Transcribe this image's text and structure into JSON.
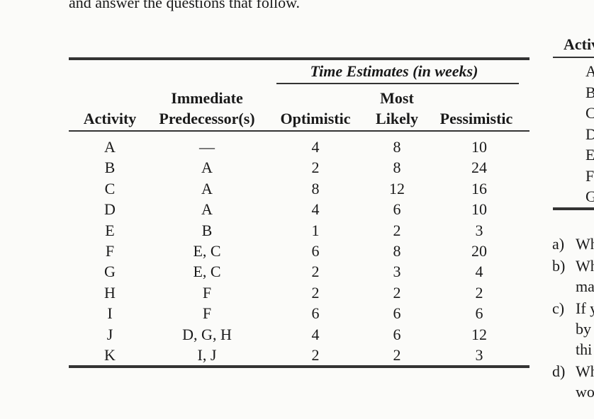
{
  "intro": "and answer the questions that follow.",
  "table": {
    "group_header": "Time Estimates (in weeks)",
    "headers": {
      "activity": "Activity",
      "predecessor_line1": "Immediate",
      "predecessor_line2": "Predecessor(s)",
      "optimistic": "Optimistic",
      "most_likely_line1": "Most",
      "most_likely_line2": "Likely",
      "pessimistic": "Pessimistic"
    },
    "rows": [
      [
        "A",
        "—",
        4,
        8,
        10
      ],
      [
        "B",
        "A",
        2,
        8,
        24
      ],
      [
        "C",
        "A",
        8,
        12,
        16
      ],
      [
        "D",
        "A",
        4,
        6,
        10
      ],
      [
        "E",
        "B",
        1,
        2,
        3
      ],
      [
        "F",
        "E, C",
        6,
        8,
        20
      ],
      [
        "G",
        "E, C",
        2,
        3,
        4
      ],
      [
        "H",
        "F",
        2,
        2,
        2
      ],
      [
        "I",
        "F",
        6,
        6,
        6
      ],
      [
        "J",
        "D, G, H",
        4,
        6,
        12
      ],
      [
        "K",
        "I, J",
        2,
        2,
        3
      ]
    ]
  },
  "side_table": {
    "header": "Activ",
    "rows": [
      "A",
      "B",
      "C",
      "D",
      "E",
      "F",
      "G"
    ]
  },
  "questions": [
    {
      "label": "a)",
      "lines": [
        "Wh"
      ]
    },
    {
      "label": "b)",
      "lines": [
        "Wh",
        "ma"
      ]
    },
    {
      "label": "c)",
      "lines": [
        "If y",
        "by",
        "thi"
      ]
    },
    {
      "label": "d)",
      "lines": [
        "Wh",
        "wo"
      ]
    }
  ]
}
